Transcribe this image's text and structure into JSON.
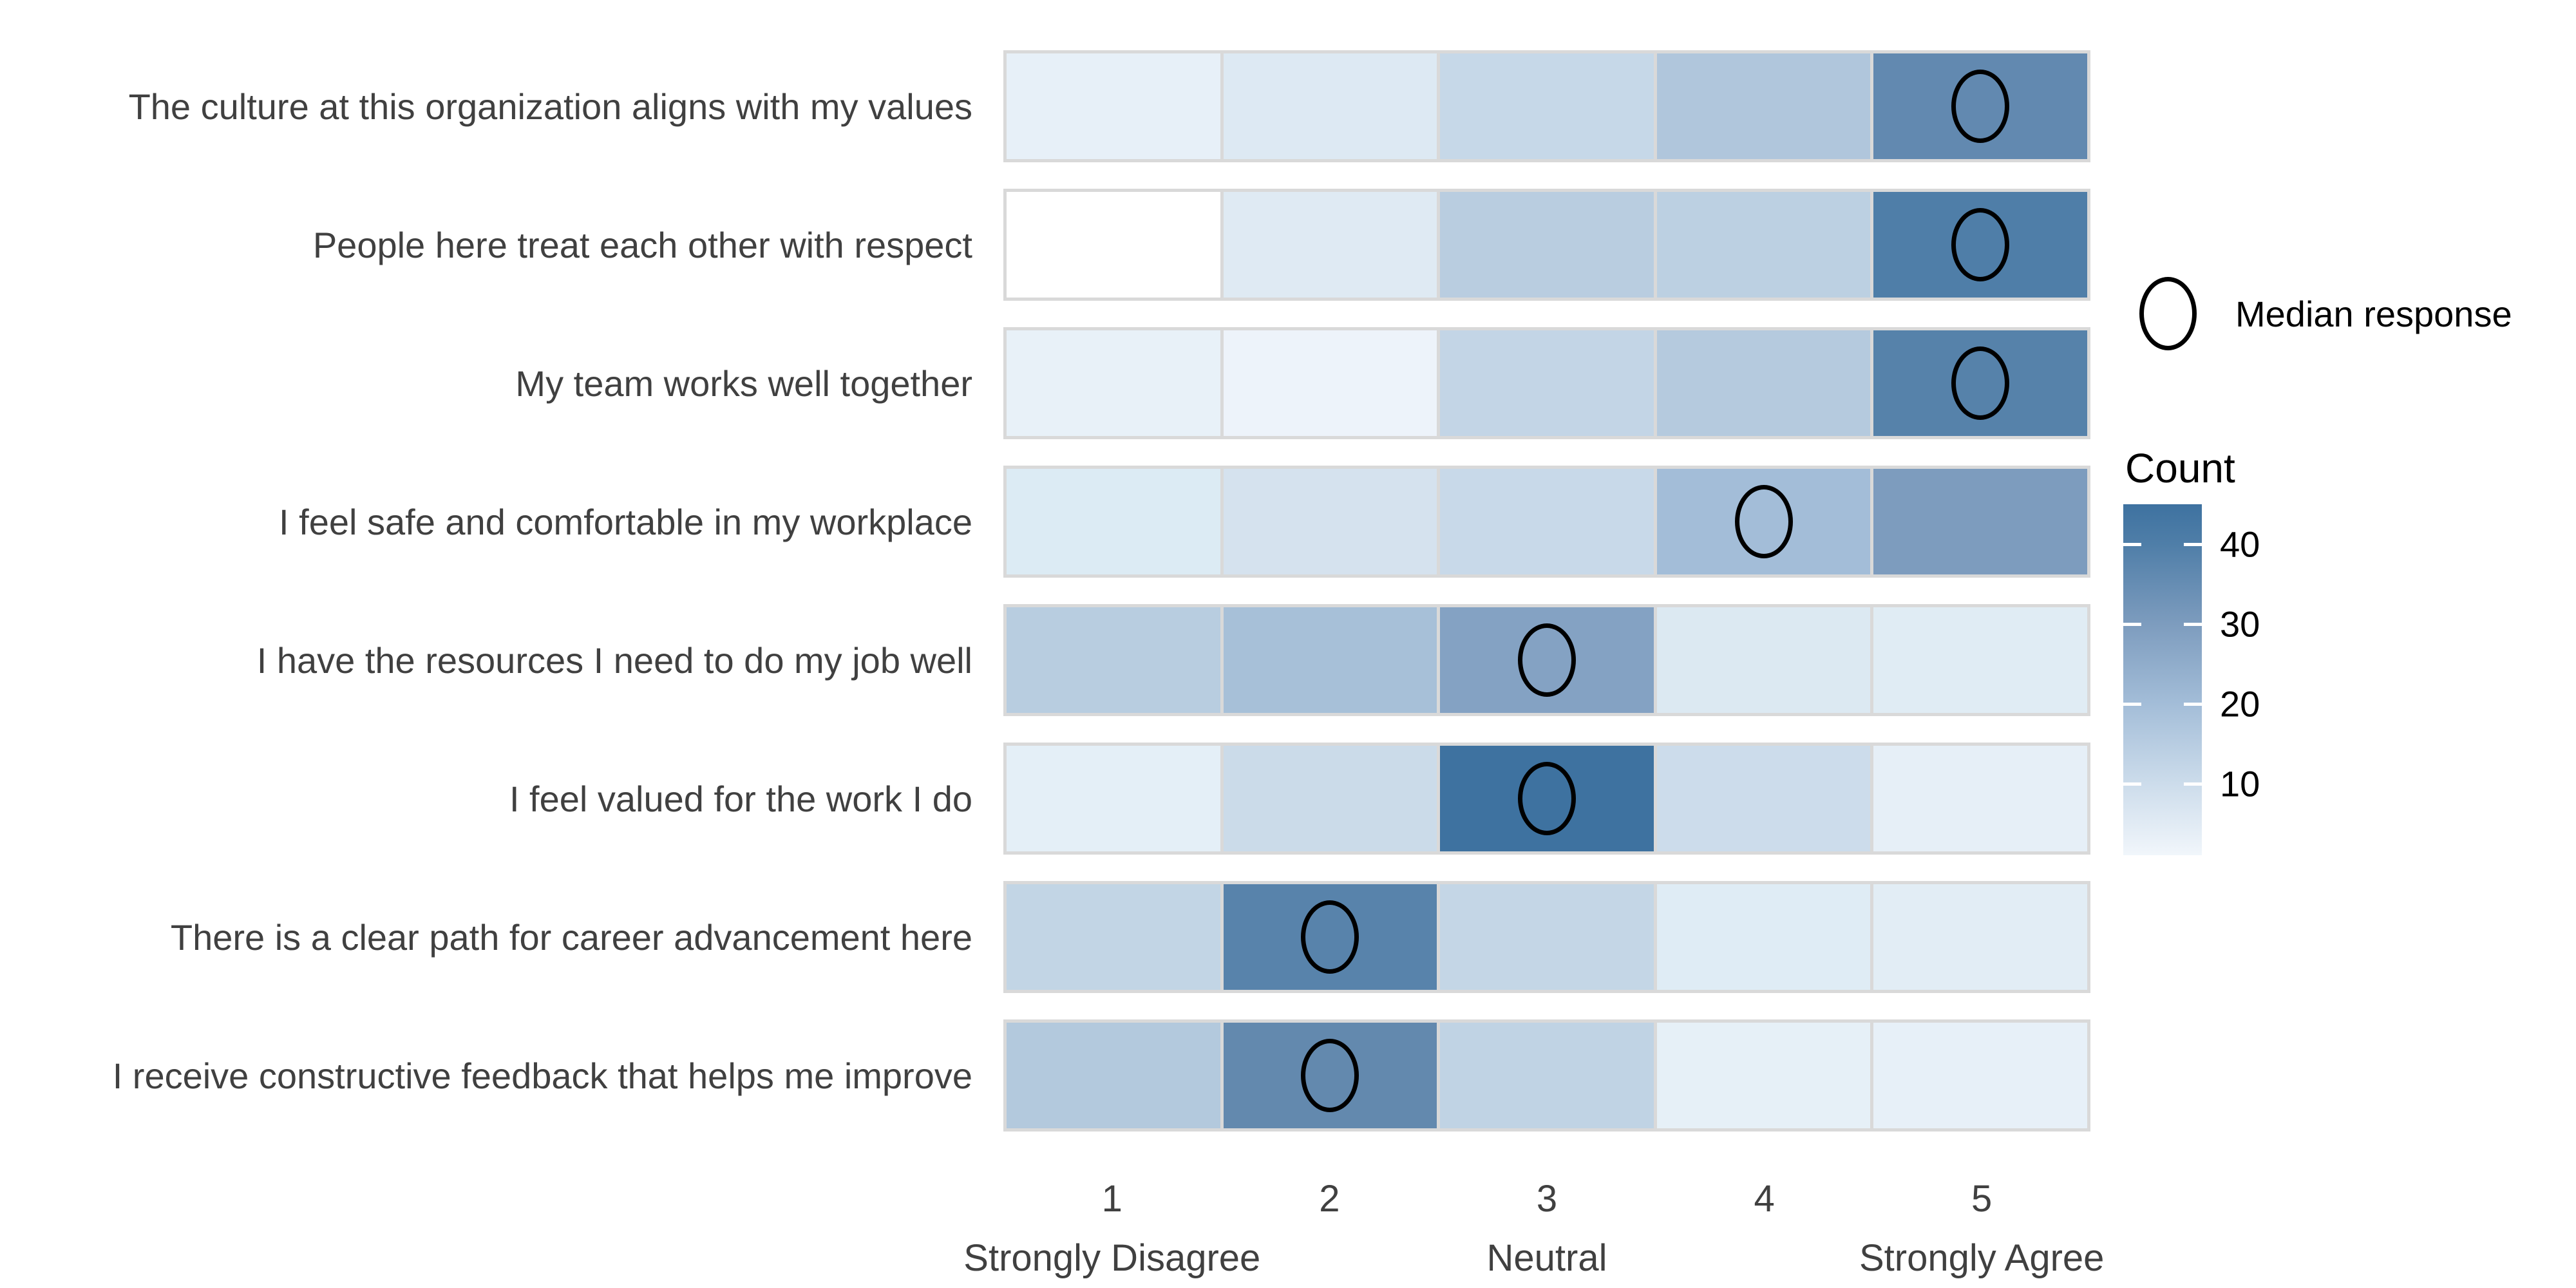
{
  "chart_data": {
    "type": "heatmap",
    "title": "",
    "x_axis": {
      "ticks": [
        "1",
        "2",
        "3",
        "4",
        "5"
      ],
      "tick_sublabels": [
        "Strongly Disagree",
        "",
        "Neutral",
        "",
        "Strongly Agree"
      ]
    },
    "count_range": [
      0,
      45
    ],
    "rows": [
      {
        "label": "The culture at this organization aligns with my values",
        "counts": [
          3,
          5,
          11,
          15,
          38
        ],
        "median": 5,
        "cell_colors": [
          "#e7f0f8",
          "#dde9f3",
          "#c6d8e8",
          "#b0c6dc",
          "#6289b0"
        ]
      },
      {
        "label": "People here treat each other with respect",
        "counts": [
          0,
          6,
          15,
          14,
          41
        ],
        "median": 5,
        "cell_colors": [
          "#ffffff",
          "#dfeaf3",
          "#b9cde0",
          "#bcd0e2",
          "#4f7ea8"
        ]
      },
      {
        "label": "My team works well together",
        "counts": [
          3,
          2,
          12,
          16,
          39
        ],
        "median": 5,
        "cell_colors": [
          "#e8f1f8",
          "#edf3fa",
          "#c3d5e6",
          "#b5cade",
          "#5682aa"
        ]
      },
      {
        "label": "I feel safe and comfortable in my workplace",
        "counts": [
          6,
          8,
          11,
          20,
          30
        ],
        "median": 4,
        "cell_colors": [
          "#dcebf4",
          "#d5e2ee",
          "#c8d9e9",
          "#a3bdd8",
          "#7d9cbe"
        ]
      },
      {
        "label": "I have the resources I need to do my job well",
        "counts": [
          15,
          19,
          28,
          6,
          5
        ],
        "median": 3,
        "cell_colors": [
          "#b8cde0",
          "#a7c0d8",
          "#84a2c3",
          "#dce9f2",
          "#e0ecf4"
        ]
      },
      {
        "label": "I feel valued for the work I do",
        "counts": [
          4,
          11,
          45,
          10,
          4
        ],
        "median": 3,
        "cell_colors": [
          "#e4eff7",
          "#cbdbe9",
          "#3e72a0",
          "#ccdceb",
          "#e6eff7"
        ]
      },
      {
        "label": "There is a clear path for career advancement here",
        "counts": [
          13,
          39,
          12,
          6,
          5
        ],
        "median": 2,
        "cell_colors": [
          "#c2d5e5",
          "#5883ab",
          "#c4d6e6",
          "#dfecf5",
          "#e2edf5"
        ]
      },
      {
        "label": "I receive constructive feedback that helps me improve",
        "counts": [
          16,
          36,
          13,
          4,
          4
        ],
        "median": 2,
        "cell_colors": [
          "#b3c9dd",
          "#6389ae",
          "#c0d3e4",
          "#e6f0f7",
          "#e7f0f8"
        ]
      }
    ],
    "legend": {
      "median_label": "Median response"
    },
    "colorbar": {
      "title": "Count",
      "tick_values": [
        40,
        30,
        20,
        10
      ],
      "gradient_low": "#f1f6fb",
      "gradient_high": "#3e72a0"
    },
    "layout": {
      "legend_position": "right",
      "grid": "off"
    }
  },
  "colors": {
    "background": "#ffffff",
    "cell_gap": "#d9d9d9",
    "axis_text": "#404040",
    "legend_text": "#000000",
    "marker_stroke": "#000000"
  }
}
